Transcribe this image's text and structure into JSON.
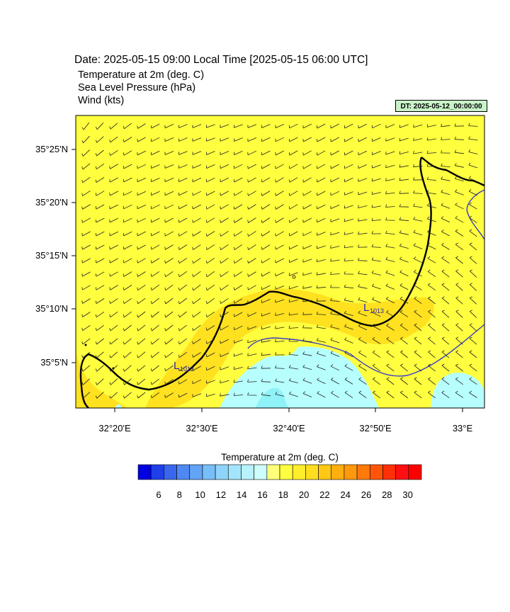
{
  "header": {
    "title": "Date: 2025-05-15  09:00 Local Time [2025-05-15  06:00 UTC]",
    "line1": "Temperature at 2m   (deg. C)",
    "line2": "Sea Level Pressure   (hPa)",
    "line3": "Wind   (kts)",
    "dt_label": "DT: 2025-05-12_00:00:00"
  },
  "map": {
    "lat_labels": [
      "35°25'N",
      "35°20'N",
      "35°15'N",
      "35°10'N",
      "35°5'N"
    ],
    "lon_labels": [
      "32°20'E",
      "32°30'E",
      "32°40'E",
      "32°50'E",
      "33°E"
    ],
    "lows": [
      {
        "letter": "L",
        "value": "1012"
      },
      {
        "letter": "L",
        "value": "1013"
      }
    ],
    "colors": {
      "land_warm": "#ffff3f",
      "warmer": "#ffe11f",
      "cool": "#b7ffff",
      "cooler": "#8ff2f7",
      "coast": "#000000",
      "isobar": "#3a3ac8"
    }
  },
  "colorbar": {
    "title": "Temperature at 2m  (deg. C)",
    "tick_labels": [
      "6",
      "8",
      "10",
      "12",
      "14",
      "16",
      "18",
      "20",
      "22",
      "24",
      "26",
      "28",
      "30"
    ],
    "colors": [
      "#0000e0",
      "#1f3fe8",
      "#3a66ee",
      "#4f88f2",
      "#62a4f5",
      "#78bef8",
      "#8ed3fa",
      "#a3e5fc",
      "#b8f2fd",
      "#cdfdfd",
      "#ffff7a",
      "#ffff3f",
      "#ffee2a",
      "#ffdd1f",
      "#ffc815",
      "#ffb00f",
      "#ff980c",
      "#ff7a0a",
      "#ff5508",
      "#ff2f06",
      "#ff1010",
      "#ff0000"
    ]
  }
}
